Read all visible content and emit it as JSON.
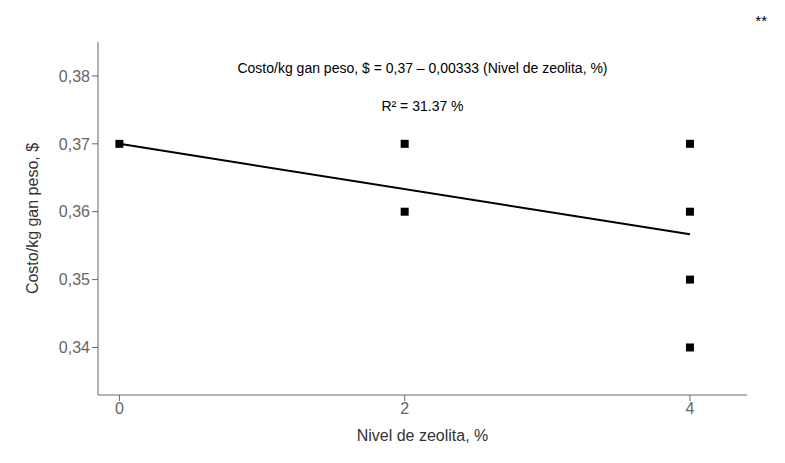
{
  "chart_data": {
    "type": "scatter",
    "annotations": [
      "Costo/kg gan peso, $ = 0,37 – 0,00333 (Nivel de zeolita, %)",
      "R² = 31.37 %",
      "**"
    ],
    "x_label": "Nivel de zeolita,  %",
    "y_label": "Costo/kg gan peso, $",
    "series": [
      {
        "type": "scatter",
        "x": [
          0,
          2,
          2,
          4,
          4,
          4,
          4
        ],
        "values": [
          0.37,
          0.37,
          0.36,
          0.37,
          0.36,
          0.35,
          0.34
        ],
        "color": "#000000",
        "marker": "square"
      },
      {
        "type": "line",
        "x": [
          0,
          4
        ],
        "values": [
          0.37,
          0.35668
        ],
        "color": "#000000"
      }
    ],
    "xlim": [
      -0.15,
      4.4
    ],
    "ylim": [
      0.333,
      0.385
    ],
    "xticks": [
      0,
      2,
      4
    ],
    "yticks": [
      {
        "value": 0.34,
        "label": "0,34"
      },
      {
        "value": 0.35,
        "label": "0,35"
      },
      {
        "value": 0.36,
        "label": "0,36"
      },
      {
        "value": 0.37,
        "label": "0,37"
      },
      {
        "value": 0.38,
        "label": "0,38"
      }
    ],
    "grid": false
  }
}
